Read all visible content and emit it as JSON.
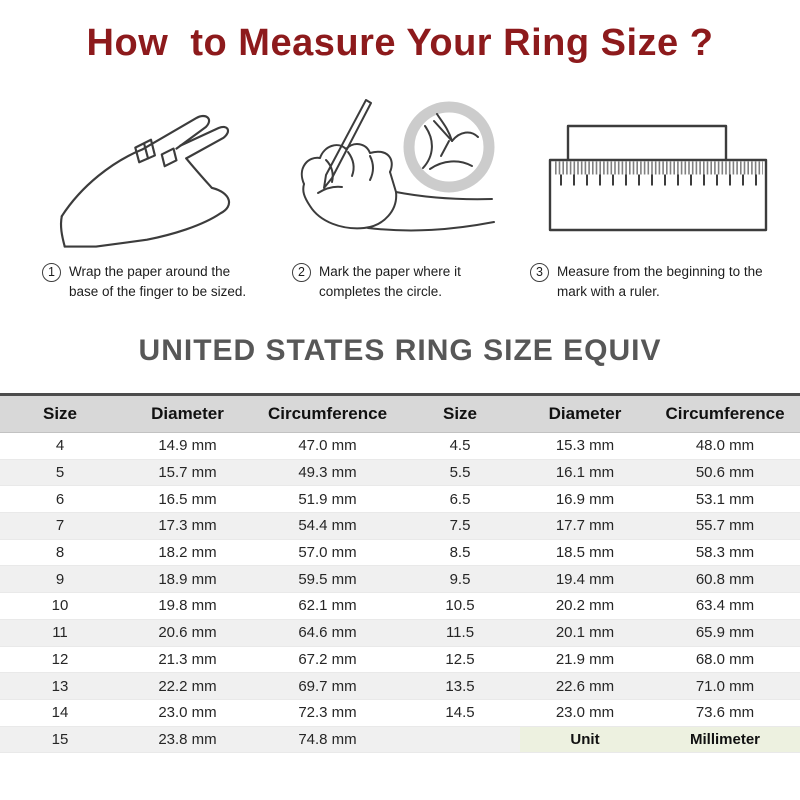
{
  "page": {
    "title": "How  to Measure Your Ring Size ?"
  },
  "colors": {
    "title_color": "#8d1a1c",
    "table_title_color": "#575757",
    "table_header_bg": "#d8d8d8",
    "alt_row_bg": "#f0f0f0",
    "unit_cell_bg": "#edf1e0",
    "magnifier_ring": "#cccccc",
    "line_art": "#3c3c3c"
  },
  "steps": [
    {
      "number": "1",
      "caption": "Wrap the paper around the base of the finger to be sized.",
      "illustration": "hand-with-paper-strip"
    },
    {
      "number": "2",
      "caption": "Mark the paper where it completes the circle.",
      "illustration": "hand-marking-paper-with-pen"
    },
    {
      "number": "3",
      "caption": "Measure from the beginning to the mark with a ruler.",
      "illustration": "paper-strip-on-ruler"
    }
  ],
  "size_table": {
    "title": "UNITED STATES RING SIZE EQUIV",
    "headers": [
      "Size",
      "Diameter",
      "Circumference",
      "Size",
      "Diameter",
      "Circumference"
    ],
    "rows": [
      [
        "4",
        "14.9 mm",
        "47.0 mm",
        "4.5",
        "15.3 mm",
        "48.0 mm"
      ],
      [
        "5",
        "15.7 mm",
        "49.3 mm",
        "5.5",
        "16.1 mm",
        "50.6 mm"
      ],
      [
        "6",
        "16.5 mm",
        "51.9 mm",
        "6.5",
        "16.9 mm",
        "53.1 mm"
      ],
      [
        "7",
        "17.3 mm",
        "54.4 mm",
        "7.5",
        "17.7 mm",
        "55.7 mm"
      ],
      [
        "8",
        "18.2 mm",
        "57.0 mm",
        "8.5",
        "18.5 mm",
        "58.3 mm"
      ],
      [
        "9",
        "18.9 mm",
        "59.5 mm",
        "9.5",
        "19.4 mm",
        "60.8 mm"
      ],
      [
        "10",
        "19.8 mm",
        "62.1 mm",
        "10.5",
        "20.2 mm",
        "63.4 mm"
      ],
      [
        "11",
        "20.6 mm",
        "64.6 mm",
        "11.5",
        "20.1 mm",
        "65.9 mm"
      ],
      [
        "12",
        "21.3 mm",
        "67.2 mm",
        "12.5",
        "21.9 mm",
        "68.0 mm"
      ],
      [
        "13",
        "22.2 mm",
        "69.7 mm",
        "13.5",
        "22.6 mm",
        "71.0 mm"
      ],
      [
        "14",
        "23.0 mm",
        "72.3 mm",
        "14.5",
        "23.0 mm",
        "73.6 mm"
      ],
      [
        "15",
        "23.8 mm",
        "74.8 mm",
        "",
        "Unit",
        "Millimeter"
      ]
    ],
    "unit_row": {
      "label": "Unit",
      "value": "Millimeter"
    }
  }
}
